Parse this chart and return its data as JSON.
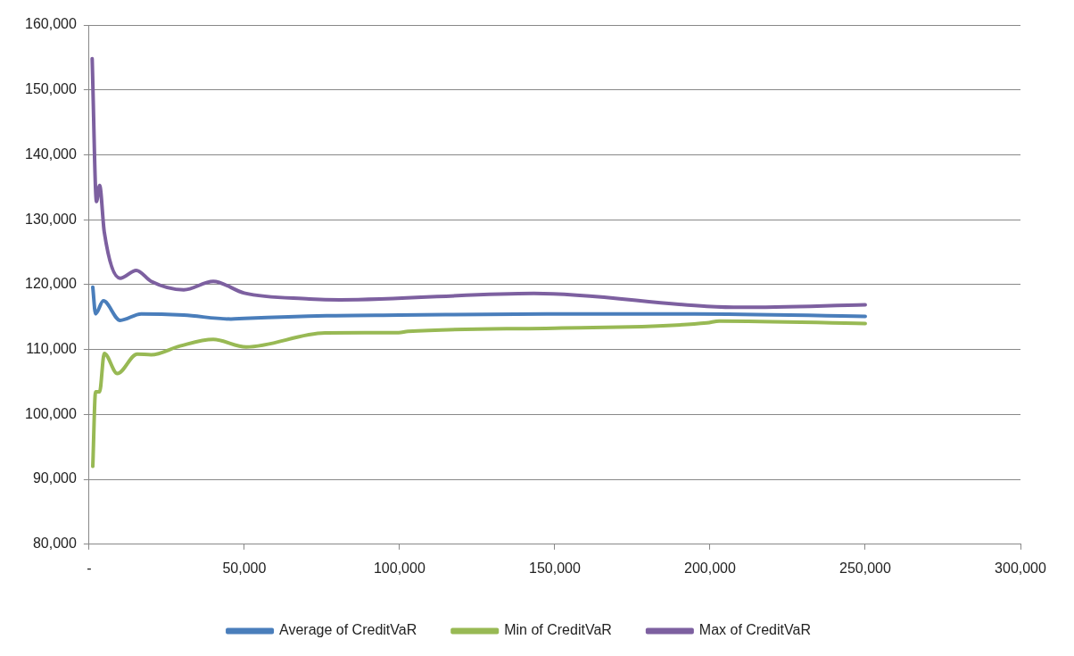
{
  "chart_data": {
    "type": "line",
    "xlim": [
      0,
      300000
    ],
    "xticks": [
      {
        "value": 0,
        "label": "-"
      },
      {
        "value": 50000,
        "label": "50,000"
      },
      {
        "value": 100000,
        "label": "100,000"
      },
      {
        "value": 150000,
        "label": "150,000"
      },
      {
        "value": 200000,
        "label": "200,000"
      },
      {
        "value": 250000,
        "label": "250,000"
      },
      {
        "value": 300000,
        "label": "300,000"
      }
    ],
    "ylim": [
      80000,
      160000
    ],
    "yticks": [
      {
        "value": 80000,
        "label": "80,000"
      },
      {
        "value": 90000,
        "label": "90,000"
      },
      {
        "value": 100000,
        "label": "100,000"
      },
      {
        "value": 110000,
        "label": "110,000"
      },
      {
        "value": 120000,
        "label": "120,000"
      },
      {
        "value": 130000,
        "label": "130,000"
      },
      {
        "value": 140000,
        "label": "140,000"
      },
      {
        "value": 150000,
        "label": "150,000"
      },
      {
        "value": 160000,
        "label": "160,000"
      }
    ],
    "grid": "y",
    "legend": "bottom",
    "marker": "none",
    "line_style": "solid",
    "series": [
      {
        "name": "Average of CreditVaR",
        "color": "#4a7ebb",
        "x": [
          1200,
          2100,
          4600,
          10000,
          16800,
          30500,
          45700,
          50000,
          76500,
          100000,
          148800,
          195000,
          250000
        ],
        "values": [
          119600,
          115500,
          117500,
          114500,
          115500,
          115300,
          114700,
          114800,
          115200,
          115300,
          115500,
          115500,
          115100
        ]
      },
      {
        "name": "Min of CreditVaR",
        "color": "#98b954",
        "x": [
          1200,
          2100,
          3400,
          4900,
          9100,
          15500,
          20000,
          29300,
          40000,
          50600,
          76000,
          99700,
          102700,
          150000,
          199000,
          203000,
          250000
        ],
        "values": [
          92000,
          103500,
          103500,
          109400,
          106300,
          109300,
          109200,
          110550,
          111550,
          110400,
          112550,
          112600,
          112800,
          113300,
          114100,
          114400,
          114000
        ]
      },
      {
        "name": "Max of CreditVaR",
        "color": "#7d60a0",
        "x": [
          1000,
          2400,
          3400,
          4900,
          10000,
          15200,
          20000,
          30500,
          40000,
          50000,
          71000,
          80800,
          143300,
          199000,
          210000,
          250000
        ],
        "values": [
          154800,
          132800,
          135300,
          128100,
          121000,
          122200,
          120500,
          119200,
          120500,
          118700,
          117800,
          117650,
          118650,
          116660,
          116500,
          116900
        ]
      }
    ]
  }
}
